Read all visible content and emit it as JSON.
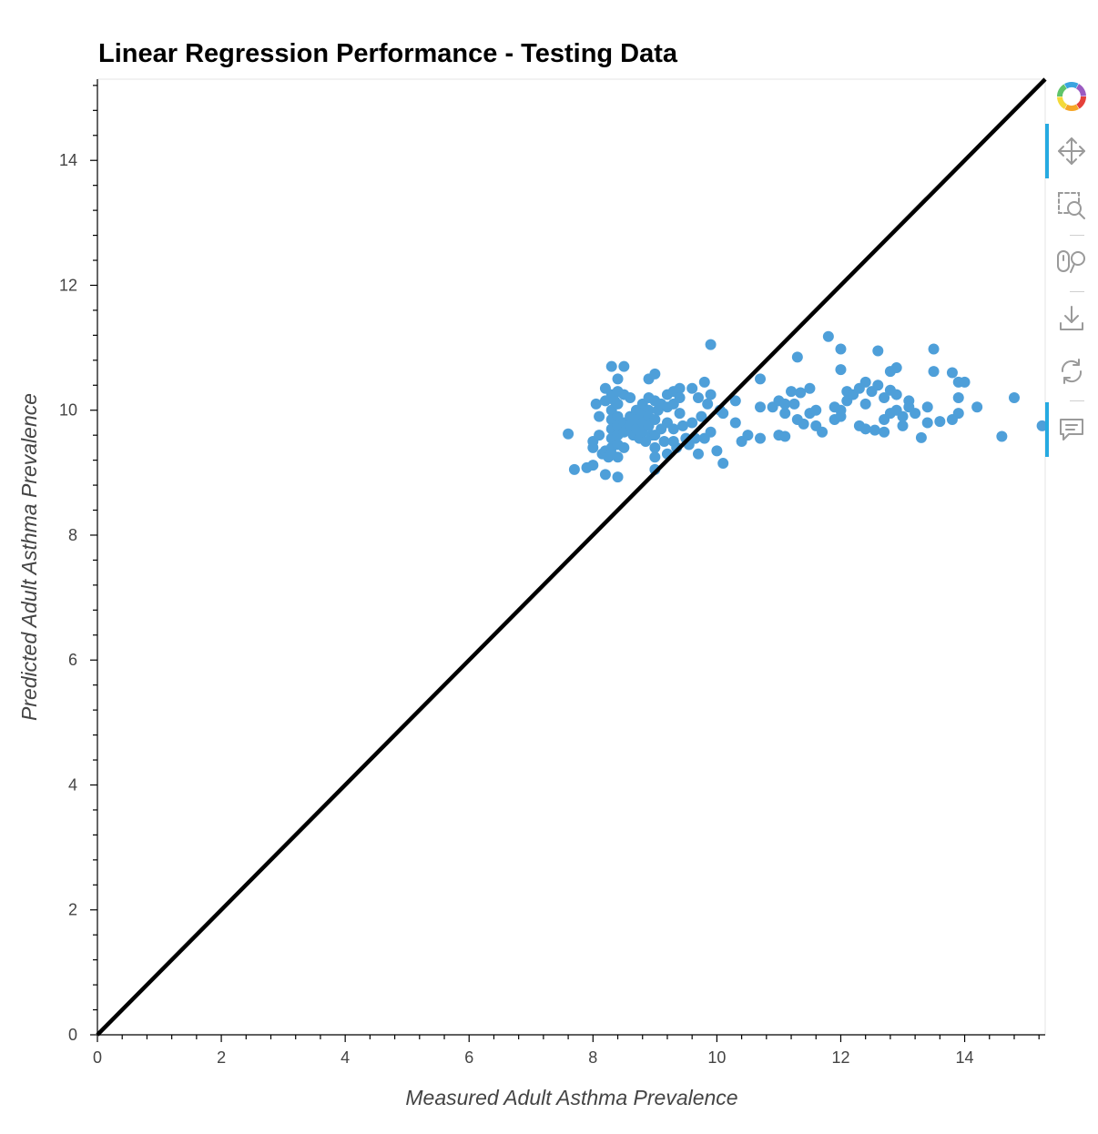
{
  "chart_data": {
    "type": "scatter",
    "title": "Linear Regression Performance - Testing Data",
    "xlabel": "Measured Adult Asthma Prevalence",
    "ylabel": "Predicted Adult Asthma Prevalence",
    "xlim": [
      0,
      15.3
    ],
    "ylim": [
      0,
      15.3
    ],
    "xticks": [
      0,
      2,
      4,
      6,
      8,
      10,
      12,
      14
    ],
    "yticks": [
      0,
      2,
      4,
      6,
      8,
      10,
      12,
      14
    ],
    "grid": false,
    "point_color": "#4e9fd9",
    "line_color": "#000000",
    "reference_line": {
      "x": [
        0,
        15.3
      ],
      "y": [
        0,
        15.3
      ]
    },
    "points": [
      [
        7.6,
        9.62
      ],
      [
        7.7,
        9.05
      ],
      [
        7.9,
        9.08
      ],
      [
        8.0,
        9.12
      ],
      [
        8.0,
        9.4
      ],
      [
        8.0,
        9.5
      ],
      [
        8.05,
        10.1
      ],
      [
        8.1,
        9.9
      ],
      [
        8.1,
        9.6
      ],
      [
        8.15,
        9.3
      ],
      [
        8.2,
        9.35
      ],
      [
        8.2,
        8.97
      ],
      [
        8.2,
        10.35
      ],
      [
        8.2,
        10.15
      ],
      [
        8.25,
        9.25
      ],
      [
        8.3,
        10.7
      ],
      [
        8.3,
        10.25
      ],
      [
        8.3,
        10.0
      ],
      [
        8.3,
        9.85
      ],
      [
        8.3,
        9.7
      ],
      [
        8.3,
        9.55
      ],
      [
        8.3,
        9.4
      ],
      [
        8.3,
        9.3
      ],
      [
        8.35,
        10.15
      ],
      [
        8.4,
        10.5
      ],
      [
        8.4,
        10.3
      ],
      [
        8.4,
        10.1
      ],
      [
        8.4,
        9.9
      ],
      [
        8.4,
        9.75
      ],
      [
        8.4,
        9.6
      ],
      [
        8.4,
        9.45
      ],
      [
        8.4,
        9.25
      ],
      [
        8.4,
        8.93
      ],
      [
        8.5,
        10.7
      ],
      [
        8.5,
        10.25
      ],
      [
        8.5,
        9.8
      ],
      [
        8.5,
        9.65
      ],
      [
        8.5,
        9.4
      ],
      [
        8.55,
        9.7
      ],
      [
        8.6,
        10.2
      ],
      [
        8.6,
        9.9
      ],
      [
        8.6,
        9.75
      ],
      [
        8.65,
        9.6
      ],
      [
        8.7,
        10.0
      ],
      [
        8.7,
        9.85
      ],
      [
        8.7,
        9.7
      ],
      [
        8.75,
        9.55
      ],
      [
        8.8,
        10.1
      ],
      [
        8.8,
        9.95
      ],
      [
        8.8,
        9.8
      ],
      [
        8.8,
        9.65
      ],
      [
        8.85,
        9.5
      ],
      [
        8.9,
        10.5
      ],
      [
        8.9,
        10.2
      ],
      [
        8.9,
        10.0
      ],
      [
        8.9,
        9.9
      ],
      [
        8.9,
        9.75
      ],
      [
        8.95,
        9.6
      ],
      [
        9.0,
        10.58
      ],
      [
        9.0,
        10.15
      ],
      [
        9.0,
        9.85
      ],
      [
        9.0,
        9.6
      ],
      [
        9.0,
        9.4
      ],
      [
        9.0,
        9.25
      ],
      [
        9.0,
        9.05
      ],
      [
        9.05,
        10.0
      ],
      [
        9.1,
        10.1
      ],
      [
        9.1,
        9.7
      ],
      [
        9.15,
        9.5
      ],
      [
        9.2,
        10.25
      ],
      [
        9.2,
        10.05
      ],
      [
        9.2,
        9.8
      ],
      [
        9.2,
        9.3
      ],
      [
        9.3,
        10.3
      ],
      [
        9.3,
        10.1
      ],
      [
        9.3,
        9.7
      ],
      [
        9.3,
        9.5
      ],
      [
        9.35,
        9.4
      ],
      [
        9.4,
        10.35
      ],
      [
        9.4,
        10.2
      ],
      [
        9.4,
        9.95
      ],
      [
        9.45,
        9.75
      ],
      [
        9.5,
        9.55
      ],
      [
        9.55,
        9.45
      ],
      [
        9.6,
        10.35
      ],
      [
        9.6,
        9.8
      ],
      [
        9.65,
        9.55
      ],
      [
        9.7,
        9.3
      ],
      [
        9.7,
        10.2
      ],
      [
        9.75,
        9.9
      ],
      [
        9.8,
        10.45
      ],
      [
        9.8,
        9.55
      ],
      [
        9.85,
        10.1
      ],
      [
        9.9,
        11.05
      ],
      [
        9.9,
        10.25
      ],
      [
        9.9,
        9.65
      ],
      [
        10.0,
        9.35
      ],
      [
        10.05,
        10.0
      ],
      [
        10.1,
        9.15
      ],
      [
        10.1,
        9.95
      ],
      [
        10.3,
        10.15
      ],
      [
        10.3,
        9.8
      ],
      [
        10.4,
        9.5
      ],
      [
        10.5,
        9.6
      ],
      [
        10.7,
        10.5
      ],
      [
        10.7,
        10.05
      ],
      [
        10.7,
        9.55
      ],
      [
        10.9,
        10.05
      ],
      [
        11.0,
        10.15
      ],
      [
        11.0,
        9.6
      ],
      [
        11.1,
        10.1
      ],
      [
        11.1,
        9.95
      ],
      [
        11.1,
        9.58
      ],
      [
        11.2,
        10.3
      ],
      [
        11.25,
        10.1
      ],
      [
        11.3,
        10.85
      ],
      [
        11.3,
        9.85
      ],
      [
        11.35,
        10.28
      ],
      [
        11.4,
        9.78
      ],
      [
        11.5,
        10.35
      ],
      [
        11.5,
        9.95
      ],
      [
        11.6,
        10.0
      ],
      [
        11.6,
        9.75
      ],
      [
        11.7,
        9.65
      ],
      [
        11.8,
        11.18
      ],
      [
        11.9,
        10.05
      ],
      [
        11.9,
        9.85
      ],
      [
        12.0,
        10.98
      ],
      [
        12.0,
        10.65
      ],
      [
        12.0,
        10.0
      ],
      [
        12.0,
        9.9
      ],
      [
        12.1,
        10.3
      ],
      [
        12.1,
        10.15
      ],
      [
        12.2,
        10.25
      ],
      [
        12.3,
        10.35
      ],
      [
        12.3,
        9.75
      ],
      [
        12.4,
        10.45
      ],
      [
        12.4,
        10.1
      ],
      [
        12.4,
        9.7
      ],
      [
        12.5,
        10.3
      ],
      [
        12.55,
        9.68
      ],
      [
        12.6,
        10.95
      ],
      [
        12.6,
        10.4
      ],
      [
        12.7,
        10.2
      ],
      [
        12.7,
        9.85
      ],
      [
        12.7,
        9.65
      ],
      [
        12.8,
        10.62
      ],
      [
        12.8,
        10.32
      ],
      [
        12.8,
        9.95
      ],
      [
        12.9,
        10.68
      ],
      [
        12.9,
        10.25
      ],
      [
        12.9,
        10.0
      ],
      [
        13.0,
        9.75
      ],
      [
        13.0,
        9.9
      ],
      [
        13.1,
        10.15
      ],
      [
        13.1,
        10.05
      ],
      [
        13.2,
        9.95
      ],
      [
        13.3,
        9.56
      ],
      [
        13.4,
        10.05
      ],
      [
        13.4,
        9.8
      ],
      [
        13.5,
        10.98
      ],
      [
        13.5,
        10.62
      ],
      [
        13.6,
        9.82
      ],
      [
        13.8,
        10.6
      ],
      [
        13.8,
        9.85
      ],
      [
        13.9,
        10.45
      ],
      [
        13.9,
        10.2
      ],
      [
        13.9,
        9.95
      ],
      [
        14.0,
        10.45
      ],
      [
        14.2,
        10.05
      ],
      [
        14.6,
        9.58
      ],
      [
        14.8,
        10.2
      ],
      [
        15.25,
        9.75
      ]
    ]
  },
  "toolbar": {
    "tools": [
      "bokeh-logo",
      "pan-tool",
      "box-zoom-tool",
      "wheel-zoom-tool",
      "save-tool",
      "reset-tool",
      "hover-tool"
    ],
    "accent_color": "#26aae1"
  }
}
